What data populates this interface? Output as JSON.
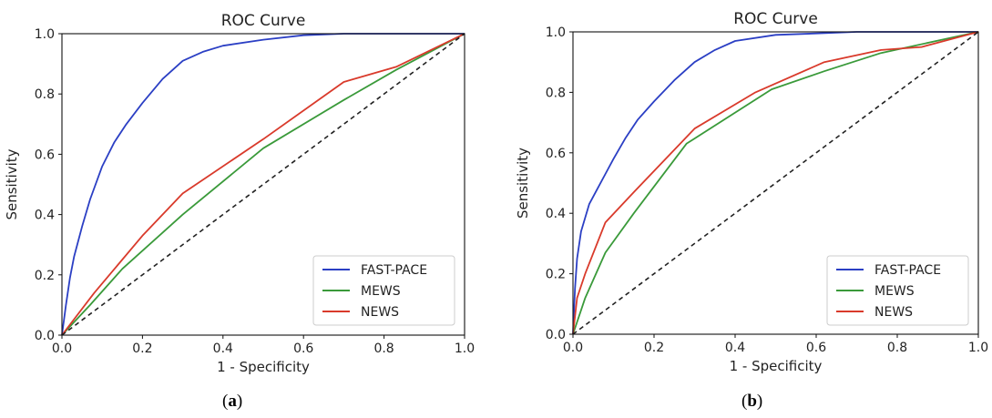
{
  "chart_data": [
    {
      "type": "line",
      "title": "ROC Curve",
      "xlabel": "1 - Specificity",
      "ylabel": "Sensitivity",
      "xlim": [
        0,
        1
      ],
      "ylim": [
        0,
        1
      ],
      "xticks": [
        "0.0",
        "0.2",
        "0.4",
        "0.6",
        "0.8",
        "1.0"
      ],
      "yticks": [
        "0.0",
        "0.2",
        "0.4",
        "0.6",
        "0.8",
        "1.0"
      ],
      "grid": false,
      "legend_position": "lower-right",
      "series": [
        {
          "name": "FAST-PACE",
          "color": "#2b3fc4",
          "x": [
            0,
            0.01,
            0.02,
            0.03,
            0.05,
            0.07,
            0.1,
            0.13,
            0.16,
            0.2,
            0.25,
            0.3,
            0.35,
            0.4,
            0.5,
            0.6,
            0.7,
            0.8,
            1.0
          ],
          "y": [
            0,
            0.1,
            0.19,
            0.26,
            0.36,
            0.45,
            0.56,
            0.64,
            0.7,
            0.77,
            0.85,
            0.91,
            0.94,
            0.96,
            0.98,
            0.995,
            1.0,
            1.0,
            1.0
          ]
        },
        {
          "name": "MEWS",
          "color": "#3a9a3a",
          "x": [
            0,
            0.07,
            0.15,
            0.3,
            0.5,
            0.7,
            0.83,
            1.0
          ],
          "y": [
            0,
            0.1,
            0.22,
            0.4,
            0.62,
            0.78,
            0.88,
            1.0
          ]
        },
        {
          "name": "NEWS",
          "color": "#d93a2b",
          "x": [
            0,
            0.08,
            0.2,
            0.3,
            0.5,
            0.7,
            0.83,
            1.0
          ],
          "y": [
            0,
            0.14,
            0.33,
            0.47,
            0.65,
            0.84,
            0.89,
            1.0
          ]
        },
        {
          "color": "#222222",
          "dashed": true,
          "x": [
            0,
            1
          ],
          "y": [
            0,
            1
          ]
        }
      ]
    },
    {
      "type": "line",
      "title": "ROC Curve",
      "xlabel": "1 - Specificity",
      "ylabel": "Sensitivity",
      "xlim": [
        0,
        1
      ],
      "ylim": [
        0,
        1
      ],
      "xticks": [
        "0.0",
        "0.2",
        "0.4",
        "0.6",
        "0.8",
        "1.0"
      ],
      "yticks": [
        "0.0",
        "0.2",
        "0.4",
        "0.6",
        "0.8",
        "1.0"
      ],
      "grid": false,
      "legend_position": "lower-right",
      "series": [
        {
          "name": "FAST-PACE",
          "color": "#2b3fc4",
          "x": [
            0,
            0.005,
            0.01,
            0.02,
            0.04,
            0.06,
            0.08,
            0.1,
            0.13,
            0.16,
            0.2,
            0.25,
            0.3,
            0.35,
            0.4,
            0.5,
            0.6,
            0.7,
            1.0
          ],
          "y": [
            0,
            0.15,
            0.25,
            0.34,
            0.43,
            0.48,
            0.53,
            0.58,
            0.65,
            0.71,
            0.77,
            0.84,
            0.9,
            0.94,
            0.97,
            0.99,
            0.995,
            1.0,
            1.0
          ]
        },
        {
          "name": "MEWS",
          "color": "#3a9a3a",
          "x": [
            0,
            0.03,
            0.08,
            0.15,
            0.28,
            0.49,
            0.62,
            0.76,
            1.0
          ],
          "y": [
            0,
            0.12,
            0.27,
            0.4,
            0.63,
            0.81,
            0.87,
            0.93,
            1.0
          ]
        },
        {
          "name": "NEWS",
          "color": "#d93a2b",
          "x": [
            0,
            0.01,
            0.03,
            0.08,
            0.15,
            0.3,
            0.45,
            0.62,
            0.76,
            0.86,
            1.0
          ],
          "y": [
            0,
            0.12,
            0.2,
            0.37,
            0.47,
            0.68,
            0.8,
            0.9,
            0.94,
            0.95,
            1.0
          ]
        },
        {
          "color": "#222222",
          "dashed": true,
          "x": [
            0,
            1
          ],
          "y": [
            0,
            1
          ]
        }
      ]
    }
  ],
  "captions": {
    "a": {
      "open": "(",
      "letter": "a",
      "close": ")"
    },
    "b": {
      "open": "(",
      "letter": "b",
      "close": ")"
    }
  }
}
